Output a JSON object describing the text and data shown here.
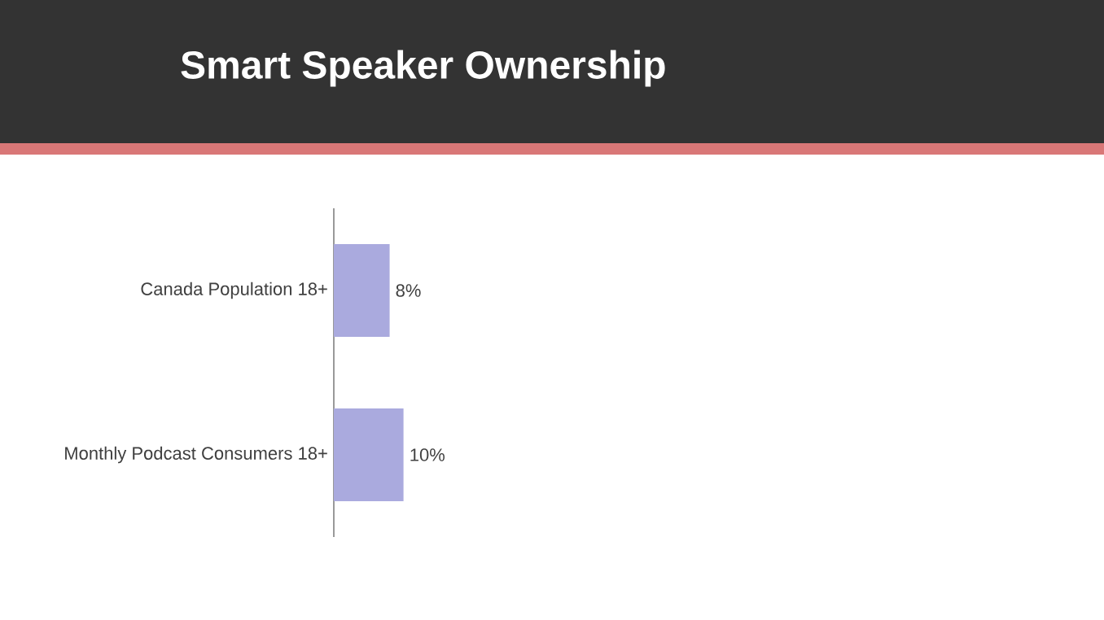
{
  "chart_data": {
    "type": "bar",
    "orientation": "horizontal",
    "title": "Smart Speaker Ownership",
    "categories": [
      "Canada Population 18+",
      "Monthly Podcast Consumers 18+"
    ],
    "values": [
      8,
      10
    ],
    "value_labels": [
      "8%",
      "10%"
    ],
    "color": "#aaaade"
  }
}
